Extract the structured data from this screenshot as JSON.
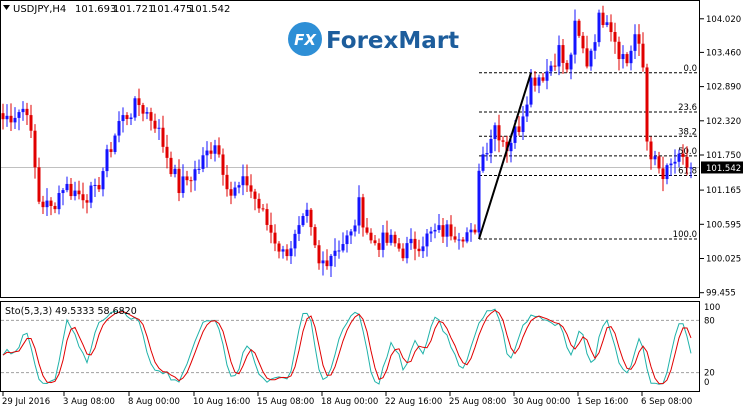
{
  "header": {
    "symbol_caption": "USDJPY,H4",
    "ohlc": [
      "101.693",
      "101.721",
      "101.475",
      "101.542"
    ],
    "dropdown_icon": "triangle-down-icon"
  },
  "logo": {
    "text": "ForexMart",
    "badge_letters": "FX",
    "colors": {
      "badge": "#2e8fd6",
      "text_dark": "#1d5d9c",
      "text_light": "#4aa3e6"
    }
  },
  "price_axis": {
    "ticks": [
      "104.020",
      "103.460",
      "102.890",
      "102.320",
      "101.750",
      "101.165",
      "100.595",
      "100.025",
      "99.455"
    ],
    "current_price": "101.542"
  },
  "fibonacci": {
    "high": 103.12,
    "low": 100.35,
    "levels": [
      {
        "label": "0.0",
        "ratio": 0.0
      },
      {
        "label": "23.6",
        "ratio": 0.236
      },
      {
        "label": "38.2",
        "ratio": 0.382
      },
      {
        "label": "50.0",
        "ratio": 0.5
      },
      {
        "label": "61.8",
        "ratio": 0.618
      },
      {
        "label": "100.0",
        "ratio": 1.0
      }
    ]
  },
  "oscillator": {
    "caption": "Sto(5,3,3) 49.5333 58.6820",
    "axis_ticks": [
      "100",
      "80",
      "20",
      "0"
    ],
    "levels": [
      80,
      20
    ]
  },
  "time_axis": {
    "labels": [
      "29 Jul 2016",
      "3 Aug 08:00",
      "8 Aug 00:00",
      "10 Aug 16:00",
      "15 Aug 08:00",
      "18 Aug 00:00",
      "22 Aug 16:00",
      "25 Aug 08:00",
      "30 Aug 00:00",
      "1 Sep 16:00",
      "6 Sep 08:00"
    ]
  },
  "colors": {
    "bull": "#1414ff",
    "bear": "#e00000",
    "stoch_main": "#20b2aa",
    "stoch_signal": "#e00000",
    "grid_dots": "#000000",
    "axis": "#000000",
    "current_line": "#c0c0c0"
  },
  "chart_data": {
    "type": "candlestick",
    "symbol": "USDJPY",
    "timeframe": "H4",
    "y_range": [
      99.4,
      104.3
    ],
    "anchors": [
      {
        "i": 0,
        "p": 102.35
      },
      {
        "i": 6,
        "p": 102.55
      },
      {
        "i": 9,
        "p": 101.0
      },
      {
        "i": 12,
        "p": 100.85
      },
      {
        "i": 15,
        "p": 101.25
      },
      {
        "i": 19,
        "p": 101.1
      },
      {
        "i": 23,
        "p": 101.1
      },
      {
        "i": 29,
        "p": 102.3
      },
      {
        "i": 34,
        "p": 102.6
      },
      {
        "i": 38,
        "p": 102.3
      },
      {
        "i": 44,
        "p": 101.2
      },
      {
        "i": 49,
        "p": 101.55
      },
      {
        "i": 53,
        "p": 102.0
      },
      {
        "i": 57,
        "p": 101.1
      },
      {
        "i": 61,
        "p": 101.3
      },
      {
        "i": 66,
        "p": 100.6
      },
      {
        "i": 70,
        "p": 100.1
      },
      {
        "i": 73,
        "p": 100.35
      },
      {
        "i": 76,
        "p": 100.7
      },
      {
        "i": 79,
        "p": 99.9
      },
      {
        "i": 83,
        "p": 100.2
      },
      {
        "i": 87,
        "p": 100.4
      },
      {
        "i": 89,
        "p": 100.9
      },
      {
        "i": 92,
        "p": 100.3
      },
      {
        "i": 97,
        "p": 100.3
      },
      {
        "i": 100,
        "p": 100.15
      },
      {
        "i": 104,
        "p": 100.3
      },
      {
        "i": 108,
        "p": 100.45
      },
      {
        "i": 112,
        "p": 100.5
      },
      {
        "i": 116,
        "p": 100.45
      },
      {
        "i": 118,
        "p": 100.35
      },
      {
        "i": 119,
        "p": 101.6
      },
      {
        "i": 123,
        "p": 102.25
      },
      {
        "i": 126,
        "p": 101.9
      },
      {
        "i": 129,
        "p": 102.25
      },
      {
        "i": 132,
        "p": 103.0
      },
      {
        "i": 136,
        "p": 103.15
      },
      {
        "i": 139,
        "p": 103.5
      },
      {
        "i": 141,
        "p": 103.1
      },
      {
        "i": 143,
        "p": 103.85
      },
      {
        "i": 146,
        "p": 103.3
      },
      {
        "i": 149,
        "p": 104.0
      },
      {
        "i": 151,
        "p": 104.1
      },
      {
        "i": 154,
        "p": 103.5
      },
      {
        "i": 156,
        "p": 103.3
      },
      {
        "i": 158,
        "p": 103.75
      },
      {
        "i": 160,
        "p": 103.2
      },
      {
        "i": 161,
        "p": 102.0
      },
      {
        "i": 163,
        "p": 101.6
      },
      {
        "i": 165,
        "p": 101.35
      },
      {
        "i": 168,
        "p": 101.65
      },
      {
        "i": 172,
        "p": 101.54
      }
    ],
    "stochastic": {
      "main_last": 49.5333,
      "signal_last": 58.682,
      "overbought": 80,
      "oversold": 20
    },
    "trend_line": {
      "from_i": 119,
      "from_p": 100.35,
      "to_i": 132,
      "to_p": 103.12
    }
  }
}
